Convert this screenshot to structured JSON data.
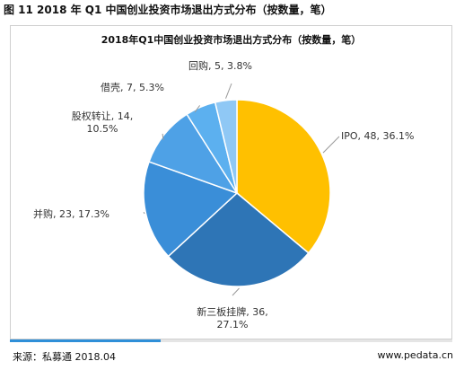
{
  "figure_caption": "图 11 2018 年 Q1 中国创业投资市场退出方式分布（按数量，笔）",
  "footer": {
    "source": "来源：私募通 2018.04",
    "site": "www.pedata.cn"
  },
  "progress": {
    "value": 0.34,
    "color": "#2f8fd8"
  },
  "chart_data": {
    "type": "pie",
    "title": "2018年Q1中国创业投资市场退出方式分布（按数量，笔）",
    "start_angle": 0,
    "direction": "clockwise",
    "slices": [
      {
        "label": "IPO",
        "value": 48,
        "percent": "36.1%",
        "color": "#ffc000",
        "text": [
          "IPO, 48, 36.1%"
        ]
      },
      {
        "label": "新三板挂牌",
        "value": 36,
        "percent": "27.1%",
        "color": "#2e75b6",
        "text": [
          "新三板挂牌, 36,",
          "27.1%"
        ]
      },
      {
        "label": "并购",
        "value": 23,
        "percent": "17.3%",
        "color": "#3a8ed8",
        "text": [
          "并购, 23, 17.3%"
        ]
      },
      {
        "label": "股权转让",
        "value": 14,
        "percent": "10.5%",
        "color": "#4ea1e6",
        "text": [
          "股权转让, 14,",
          "10.5%"
        ]
      },
      {
        "label": "借壳",
        "value": 7,
        "percent": "5.3%",
        "color": "#5cb0ef",
        "text": [
          "借壳, 7, 5.3%"
        ]
      },
      {
        "label": "回购",
        "value": 5,
        "percent": "3.8%",
        "color": "#8fc8f5",
        "text": [
          "回购, 5, 3.8%"
        ]
      }
    ]
  }
}
